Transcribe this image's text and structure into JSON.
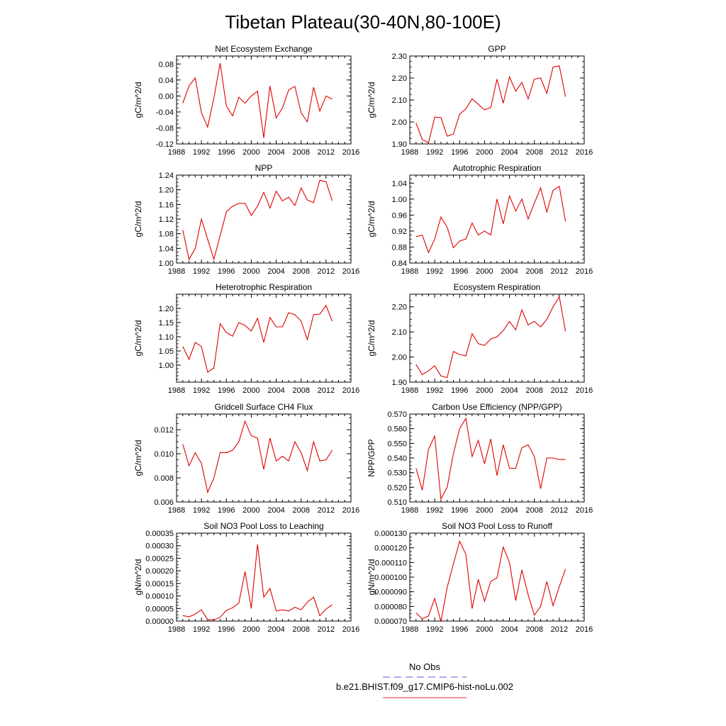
{
  "figure": {
    "title": "Tibetan Plateau(30-40N,80-100E)",
    "legend": [
      {
        "label": "No Obs",
        "color": "#5a5ad6",
        "dash": true
      },
      {
        "label": "b.e21.BHIST.f09_g17.CMIP6-hist-noLu.002",
        "color": "#e03030",
        "dash": false
      }
    ]
  },
  "chart_data": [
    {
      "type": "line",
      "title": "Net Ecosystem Exchange",
      "xlabel": "",
      "ylabel": "gC/m^2/d",
      "xlim": [
        1988,
        2016
      ],
      "ylim": [
        -0.12,
        0.1
      ],
      "xticks": [
        "1988",
        "1992",
        "1996",
        "2000",
        "2004",
        "2008",
        "2012",
        "2016"
      ],
      "yticks": [
        "-0.12",
        "-0.08",
        "-0.04",
        "0.00",
        "0.04",
        "0.08"
      ],
      "x": [
        1989,
        1990,
        1991,
        1992,
        1993,
        1994,
        1995,
        1996,
        1997,
        1998,
        1999,
        2000,
        2001,
        2002,
        2003,
        2004,
        2005,
        2006,
        2007,
        2008,
        2009,
        2010,
        2011,
        2012,
        2013
      ],
      "series": [
        {
          "color": "#e00000",
          "values": [
            -0.018,
            0.025,
            0.045,
            -0.042,
            -0.078,
            -0.005,
            0.082,
            -0.025,
            -0.05,
            -0.003,
            -0.018,
            0.0,
            0.012,
            -0.105,
            0.025,
            -0.055,
            -0.03,
            0.015,
            0.024,
            -0.042,
            -0.065,
            0.022,
            -0.038,
            0.0,
            -0.008
          ]
        }
      ]
    },
    {
      "type": "line",
      "title": "GPP",
      "xlabel": "",
      "ylabel": "gC/m^2/d",
      "xlim": [
        1988,
        2016
      ],
      "ylim": [
        1.9,
        2.3
      ],
      "xticks": [
        "1988",
        "1992",
        "1996",
        "2000",
        "2004",
        "2008",
        "2012",
        "2016"
      ],
      "yticks": [
        "1.90",
        "2.00",
        "2.10",
        "2.20",
        "2.30"
      ],
      "x": [
        1989,
        1990,
        1991,
        1992,
        1993,
        1994,
        1995,
        1996,
        1997,
        1998,
        1999,
        2000,
        2001,
        2002,
        2003,
        2004,
        2005,
        2006,
        2007,
        2008,
        2009,
        2010,
        2011,
        2012,
        2013
      ],
      "series": [
        {
          "color": "#e00000",
          "values": [
            1.995,
            1.92,
            1.905,
            2.022,
            2.02,
            1.935,
            1.945,
            2.035,
            2.06,
            2.105,
            2.08,
            2.055,
            2.065,
            2.195,
            2.085,
            2.205,
            2.14,
            2.18,
            2.105,
            2.195,
            2.2,
            2.13,
            2.25,
            2.255,
            2.115
          ]
        }
      ]
    },
    {
      "type": "line",
      "title": "NPP",
      "xlabel": "",
      "ylabel": "gC/m^2/d",
      "xlim": [
        1988,
        2016
      ],
      "ylim": [
        1.0,
        1.24
      ],
      "xticks": [
        "1988",
        "1992",
        "1996",
        "2000",
        "2004",
        "2008",
        "2012",
        "2016"
      ],
      "yticks": [
        "1.00",
        "1.04",
        "1.08",
        "1.12",
        "1.16",
        "1.20",
        "1.24"
      ],
      "x": [
        1989,
        1990,
        1991,
        1992,
        1993,
        1994,
        1995,
        1996,
        1997,
        1998,
        1999,
        2000,
        2001,
        2002,
        2003,
        2004,
        2005,
        2006,
        2007,
        2008,
        2009,
        2010,
        2011,
        2012,
        2013
      ],
      "series": [
        {
          "color": "#e00000",
          "values": [
            1.09,
            1.01,
            1.04,
            1.12,
            1.065,
            1.01,
            1.075,
            1.14,
            1.155,
            1.163,
            1.163,
            1.13,
            1.155,
            1.193,
            1.15,
            1.196,
            1.17,
            1.18,
            1.157,
            1.205,
            1.172,
            1.165,
            1.226,
            1.222,
            1.17
          ]
        }
      ]
    },
    {
      "type": "line",
      "title": "Autotrophic Respiration",
      "xlabel": "",
      "ylabel": "gC/m^2/d",
      "xlim": [
        1988,
        2016
      ],
      "ylim": [
        0.84,
        1.06
      ],
      "xticks": [
        "1988",
        "1992",
        "1996",
        "2000",
        "2004",
        "2008",
        "2012",
        "2016"
      ],
      "yticks": [
        "0.84",
        "0.88",
        "0.92",
        "0.96",
        "1.00",
        "1.04"
      ],
      "x": [
        1989,
        1990,
        1991,
        1992,
        1993,
        1994,
        1995,
        1996,
        1997,
        1998,
        1999,
        2000,
        2001,
        2002,
        2003,
        2004,
        2005,
        2006,
        2007,
        2008,
        2009,
        2010,
        2011,
        2012,
        2013
      ],
      "series": [
        {
          "color": "#e00000",
          "values": [
            0.906,
            0.91,
            0.866,
            0.9,
            0.955,
            0.93,
            0.878,
            0.895,
            0.9,
            0.94,
            0.91,
            0.92,
            0.91,
            1.0,
            0.938,
            1.008,
            0.97,
            1.0,
            0.95,
            0.99,
            1.028,
            0.968,
            1.022,
            1.032,
            0.944
          ]
        }
      ]
    },
    {
      "type": "line",
      "title": "Heterotrophic Respiration",
      "xlabel": "",
      "ylabel": "gC/m^2/d",
      "xlim": [
        1988,
        2016
      ],
      "ylim": [
        0.94,
        1.25
      ],
      "xticks": [
        "1988",
        "1992",
        "1996",
        "2000",
        "2004",
        "2008",
        "2012",
        "2016"
      ],
      "yticks": [
        "1.00",
        "1.05",
        "1.10",
        "1.15",
        "1.20"
      ],
      "x": [
        1989,
        1990,
        1991,
        1992,
        1993,
        1994,
        1995,
        1996,
        1997,
        1998,
        1999,
        2000,
        2001,
        2002,
        2003,
        2004,
        2005,
        2006,
        2007,
        2008,
        2009,
        2010,
        2011,
        2012,
        2013
      ],
      "series": [
        {
          "color": "#e00000",
          "values": [
            1.066,
            1.02,
            1.08,
            1.066,
            0.975,
            0.99,
            1.146,
            1.115,
            1.102,
            1.15,
            1.14,
            1.12,
            1.165,
            1.08,
            1.168,
            1.135,
            1.135,
            1.185,
            1.178,
            1.155,
            1.09,
            1.178,
            1.18,
            1.21,
            1.155
          ]
        }
      ]
    },
    {
      "type": "line",
      "title": "Ecosystem Respiration",
      "xlabel": "",
      "ylabel": "gC/m^2/d",
      "xlim": [
        1988,
        2016
      ],
      "ylim": [
        1.9,
        2.25
      ],
      "xticks": [
        "1988",
        "1992",
        "1996",
        "2000",
        "2004",
        "2008",
        "2012",
        "2016"
      ],
      "yticks": [
        "1.90",
        "2.00",
        "2.10",
        "2.20"
      ],
      "x": [
        1989,
        1990,
        1991,
        1992,
        1993,
        1994,
        1995,
        1996,
        1997,
        1998,
        1999,
        2000,
        2001,
        2002,
        2003,
        2004,
        2005,
        2006,
        2007,
        2008,
        2009,
        2010,
        2011,
        2012,
        2013
      ],
      "series": [
        {
          "color": "#e00000",
          "values": [
            1.97,
            1.93,
            1.945,
            1.965,
            1.925,
            1.918,
            2.022,
            2.01,
            2.005,
            2.093,
            2.053,
            2.046,
            2.072,
            2.08,
            2.105,
            2.142,
            2.108,
            2.188,
            2.128,
            2.142,
            2.12,
            2.15,
            2.2,
            2.24,
            2.102
          ]
        }
      ]
    },
    {
      "type": "line",
      "title": "Gridcell Surface CH4 Flux",
      "xlabel": "",
      "ylabel": "gC/m^2/d",
      "xlim": [
        1988,
        2016
      ],
      "ylim": [
        0.006,
        0.0133
      ],
      "xticks": [
        "1988",
        "1992",
        "1996",
        "2000",
        "2004",
        "2008",
        "2012",
        "2016"
      ],
      "yticks": [
        "0.006",
        "0.008",
        "0.010",
        "0.012"
      ],
      "x": [
        1989,
        1990,
        1991,
        1992,
        1993,
        1994,
        1995,
        1996,
        1997,
        1998,
        1999,
        2000,
        2001,
        2002,
        2003,
        2004,
        2005,
        2006,
        2007,
        2008,
        2009,
        2010,
        2011,
        2012,
        2013
      ],
      "series": [
        {
          "color": "#e00000",
          "values": [
            0.0108,
            0.009,
            0.0101,
            0.0092,
            0.0068,
            0.008,
            0.0101,
            0.0101,
            0.0103,
            0.011,
            0.0127,
            0.0115,
            0.0113,
            0.0087,
            0.0113,
            0.0094,
            0.0098,
            0.0094,
            0.011,
            0.0101,
            0.0086,
            0.011,
            0.0094,
            0.0095,
            0.0103
          ]
        }
      ]
    },
    {
      "type": "line",
      "title": "Carbon Use Efficiency (NPP/GPP)",
      "xlabel": "",
      "ylabel": "NPP/GPP",
      "xlim": [
        1988,
        2016
      ],
      "ylim": [
        0.51,
        0.57
      ],
      "xticks": [
        "1988",
        "1992",
        "1996",
        "2000",
        "2004",
        "2008",
        "2012",
        "2016"
      ],
      "yticks": [
        "0.510",
        "0.520",
        "0.530",
        "0.540",
        "0.550",
        "0.560",
        "0.570"
      ],
      "x": [
        1989,
        1990,
        1991,
        1992,
        1993,
        1994,
        1995,
        1996,
        1997,
        1998,
        1999,
        2000,
        2001,
        2002,
        2003,
        2004,
        2005,
        2006,
        2007,
        2008,
        2009,
        2010,
        2011,
        2012,
        2013
      ],
      "series": [
        {
          "color": "#e00000",
          "values": [
            0.533,
            0.518,
            0.546,
            0.555,
            0.512,
            0.52,
            0.543,
            0.56,
            0.567,
            0.541,
            0.552,
            0.536,
            0.553,
            0.528,
            0.549,
            0.533,
            0.533,
            0.547,
            0.549,
            0.541,
            0.519,
            0.54,
            0.54,
            0.539,
            0.539
          ]
        }
      ]
    },
    {
      "type": "line",
      "title": "Soil NO3 Pool Loss to Leaching",
      "xlabel": "",
      "ylabel": "gN/m^2/d",
      "xlim": [
        1988,
        2016
      ],
      "ylim": [
        0,
        0.00035
      ],
      "xticks": [
        "1988",
        "1992",
        "1996",
        "2000",
        "2004",
        "2008",
        "2012",
        "2016"
      ],
      "yticks": [
        "0.00000",
        "0.00005",
        "0.00010",
        "0.00015",
        "0.00020",
        "0.00025",
        "0.00030",
        "0.00035"
      ],
      "x": [
        1989,
        1990,
        1991,
        1992,
        1993,
        1994,
        1995,
        1996,
        1997,
        1998,
        1999,
        2000,
        2001,
        2002,
        2003,
        2004,
        2005,
        2006,
        2007,
        2008,
        2009,
        2010,
        2011,
        2012,
        2013
      ],
      "series": [
        {
          "color": "#e00000",
          "values": [
            2.2e-05,
            1.7e-05,
            2.8e-05,
            4.5e-05,
            5e-06,
            5e-06,
            1.5e-05,
            4.3e-05,
            5.3e-05,
            7.2e-05,
            0.000197,
            5e-05,
            0.000305,
            9.5e-05,
            0.00013,
            4e-05,
            4.5e-05,
            4e-05,
            5.5e-05,
            4.5e-05,
            7.5e-05,
            9.5e-05,
            2.2e-05,
            4.8e-05,
            6.5e-05
          ]
        }
      ]
    },
    {
      "type": "line",
      "title": "Soil NO3 Pool Loss to Runoff",
      "xlabel": "",
      "ylabel": "gN/m^2/d",
      "xlim": [
        1988,
        2016
      ],
      "ylim": [
        7e-05,
        0.00013
      ],
      "xticks": [
        "1988",
        "1992",
        "1996",
        "2000",
        "2004",
        "2008",
        "2012",
        "2016"
      ],
      "yticks": [
        "0.000070",
        "0.000080",
        "0.000090",
        "0.000100",
        "0.000110",
        "0.000120",
        "0.000130"
      ],
      "x": [
        1989,
        1990,
        1991,
        1992,
        1993,
        1994,
        1995,
        1996,
        1997,
        1998,
        1999,
        2000,
        2001,
        2002,
        2003,
        2004,
        2005,
        2006,
        2007,
        2008,
        2009,
        2010,
        2011,
        2012,
        2013
      ],
      "series": [
        {
          "color": "#e00000",
          "values": [
            7.55e-05,
            7.15e-05,
            7.35e-05,
            8.55e-05,
            6.95e-05,
            9.3e-05,
            0.000109,
            0.0001245,
            0.0001155,
            7.85e-05,
            9.85e-05,
            8.35e-05,
            9.7e-05,
            9.95e-05,
            0.0001205,
            0.00011,
            8.4e-05,
            0.000105,
            8.8e-05,
            7.4e-05,
            8e-05,
            9.7e-05,
            8.05e-05,
            9.35e-05,
            0.0001055
          ]
        }
      ]
    }
  ]
}
